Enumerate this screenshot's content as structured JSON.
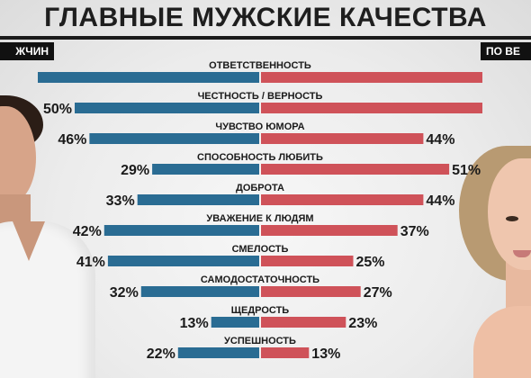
{
  "header": {
    "title": "ГЛАВНЫЕ МУЖСКИЕ КАЧЕСТВА",
    "left_tag": "ЖЧИН",
    "right_tag": "ПО ВЕ"
  },
  "chart_data": {
    "type": "bar",
    "orientation": "horizontal-diverging",
    "categories": [
      "ОТВЕТСТВЕННОСТЬ",
      "ЧЕСТНОСТЬ / ВЕРНОСТЬ",
      "ЧУВСТВО ЮМОРА",
      "СПОСОБНОСТЬ ЛЮБИТЬ",
      "ДОБРОТА",
      "УВАЖЕНИЕ К ЛЮДЯМ",
      "СМЕЛОСТЬ",
      "САМОДОСТАТОЧНОСТЬ",
      "ЩЕДРОСТЬ",
      "УСПЕШНОСТЬ"
    ],
    "series": [
      {
        "side": "left",
        "color": "#2a6c93",
        "values": [
          60,
          50,
          46,
          29,
          33,
          42,
          41,
          32,
          13,
          22
        ],
        "labels": [
          "",
          "50%",
          "46%",
          "29%",
          "33%",
          "42%",
          "41%",
          "32%",
          "13%",
          "22%"
        ]
      },
      {
        "side": "right",
        "color": "#cf5259",
        "values": [
          60,
          60,
          44,
          51,
          44,
          37,
          25,
          27,
          23,
          13
        ],
        "labels": [
          "",
          "",
          "44%",
          "51%",
          "44%",
          "37%",
          "25%",
          "27%",
          "23%",
          "13%"
        ]
      }
    ]
  }
}
